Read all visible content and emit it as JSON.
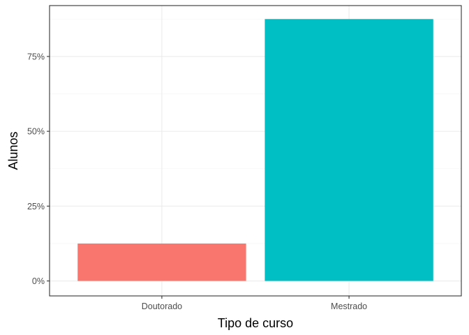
{
  "chart_data": {
    "type": "bar",
    "title": "",
    "xlabel": "Tipo de curso",
    "ylabel": "Alunos",
    "categories": [
      "Doutorado",
      "Mestrado"
    ],
    "values": [
      12.5,
      87.5
    ],
    "colors": [
      "#F8766D",
      "#00BFC4"
    ],
    "ylim": [
      -5,
      92
    ],
    "yticks": [
      0,
      25,
      50,
      75
    ],
    "ytick_labels": [
      "0%",
      "25%",
      "50%",
      "75%"
    ],
    "grid": true,
    "legend": "none",
    "theme": {
      "background": "#ffffff",
      "panel_border": "#333333",
      "grid_major": "#ebebeb",
      "grid_minor": "#f5f5f5"
    }
  }
}
